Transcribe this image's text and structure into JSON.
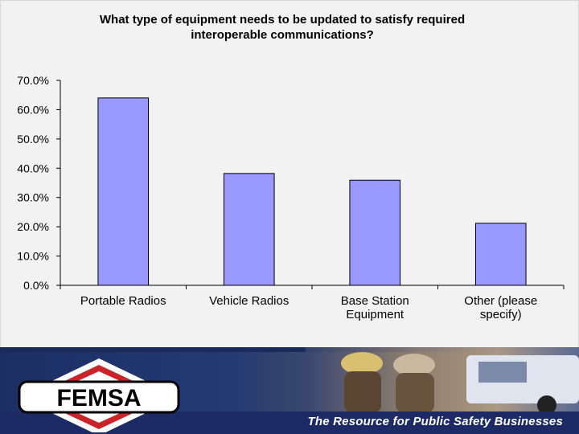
{
  "chart_data": {
    "type": "bar",
    "title_lines": [
      "What type of equipment needs to be updated to satisfy required",
      "interoperable communications?"
    ],
    "categories": [
      [
        "Portable Radios"
      ],
      [
        "Vehicle Radios"
      ],
      [
        "Base Station",
        "Equipment"
      ],
      [
        "Other (please",
        "specify)"
      ]
    ],
    "values": [
      64.0,
      38.2,
      35.9,
      21.2
    ],
    "ylim": [
      0,
      70
    ],
    "yticks": [
      0,
      10,
      20,
      30,
      40,
      50,
      60,
      70
    ],
    "ytick_labels": [
      "0.0%",
      "10.0%",
      "20.0%",
      "30.0%",
      "40.0%",
      "50.0%",
      "60.0%",
      "70.0%"
    ],
    "grid": false,
    "bar_color": "#9999ff",
    "bar_stroke": "#000000"
  },
  "footer": {
    "logo_text": "FEMSA",
    "tagline": "The Resource for Public Safety Businesses",
    "logo_red": "#cc2229"
  }
}
